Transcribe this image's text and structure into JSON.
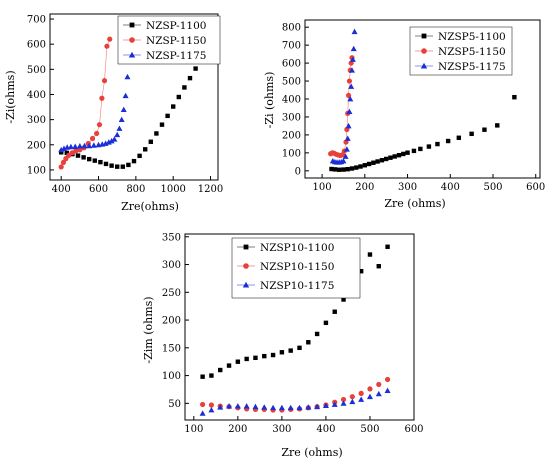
{
  "chart_data": [
    {
      "type": "scatter",
      "xlabel": "Zre(ohms)",
      "ylabel": "-Zi(ohms)",
      "xlim": [
        340,
        1240
      ],
      "ylim": [
        60,
        720
      ],
      "xticks": [
        400,
        600,
        800,
        1000,
        1200
      ],
      "yticks": [
        100,
        200,
        300,
        400,
        500,
        600,
        700
      ],
      "legend_position": "top-right",
      "series": [
        {
          "name": "NZSP-1100",
          "color": "#000000",
          "marker": "square",
          "connect": false,
          "x": [
            400,
            430,
            460,
            490,
            520,
            550,
            580,
            610,
            640,
            670,
            700,
            730,
            760,
            790,
            820,
            850,
            880,
            910,
            940,
            970,
            1000,
            1030,
            1060,
            1090,
            1120,
            1150,
            1180
          ],
          "y": [
            170,
            168,
            163,
            157,
            150,
            143,
            137,
            131,
            124,
            117,
            113,
            113,
            120,
            135,
            156,
            182,
            212,
            245,
            280,
            315,
            352,
            390,
            428,
            465,
            503,
            540,
            583
          ]
        },
        {
          "name": "NZSP-1150",
          "color": "#e8403a",
          "marker": "circle",
          "connect": true,
          "x": [
            400,
            412,
            425,
            440,
            458,
            478,
            500,
            522,
            545,
            568,
            590,
            605,
            618,
            632,
            645,
            660
          ],
          "y": [
            112,
            130,
            145,
            158,
            168,
            175,
            180,
            188,
            205,
            225,
            245,
            280,
            385,
            455,
            592,
            620
          ]
        },
        {
          "name": "NZSP-1175",
          "color": "#1a2fd6",
          "marker": "triangle",
          "connect": false,
          "x": [
            400,
            415,
            432,
            452,
            475,
            500,
            525,
            550,
            575,
            600,
            620,
            638,
            655,
            670,
            685,
            700,
            712,
            724,
            735,
            745,
            755
          ],
          "y": [
            180,
            185,
            190,
            192,
            193,
            195,
            196,
            196,
            198,
            200,
            202,
            205,
            210,
            215,
            222,
            240,
            265,
            300,
            340,
            395,
            470
          ]
        }
      ]
    },
    {
      "type": "scatter",
      "xlabel": "Zre (ohms)",
      "ylabel": "-Zi (ohms)",
      "xlim": [
        60,
        610
      ],
      "ylim": [
        -40,
        840
      ],
      "xticks": [
        100,
        200,
        300,
        400,
        500,
        600
      ],
      "yticks": [
        0,
        100,
        200,
        300,
        400,
        500,
        600,
        700,
        800
      ],
      "legend_position": "top-right",
      "series": [
        {
          "name": "NZSP5-1100",
          "color": "#000000",
          "marker": "square",
          "connect": false,
          "x": [
            122,
            130,
            140,
            150,
            160,
            170,
            180,
            190,
            200,
            210,
            220,
            230,
            240,
            250,
            260,
            270,
            280,
            290,
            300,
            315,
            330,
            350,
            370,
            395,
            420,
            450,
            480,
            510,
            550
          ],
          "y": [
            10,
            8,
            6,
            7,
            9,
            13,
            18,
            24,
            31,
            38,
            45,
            52,
            59,
            66,
            73,
            80,
            87,
            94,
            101,
            111,
            122,
            135,
            149,
            166,
            184,
            206,
            229,
            253,
            410
          ]
        },
        {
          "name": "NZSP5-1150",
          "color": "#e8403a",
          "marker": "circle",
          "connect": true,
          "x": [
            120,
            124,
            128,
            133,
            138,
            143,
            148,
            152,
            156,
            158,
            160,
            162,
            164,
            166,
            168,
            170
          ],
          "y": [
            95,
            100,
            98,
            92,
            88,
            85,
            90,
            110,
            160,
            230,
            320,
            420,
            500,
            560,
            600,
            630
          ]
        },
        {
          "name": "NZSP5-1175",
          "color": "#1a2fd6",
          "marker": "triangle",
          "connect": false,
          "x": [
            125,
            130,
            135,
            140,
            145,
            150,
            155,
            158,
            160,
            162,
            164,
            166,
            168,
            170,
            172,
            174,
            176
          ],
          "y": [
            55,
            50,
            48,
            48,
            50,
            55,
            80,
            120,
            180,
            250,
            330,
            400,
            470,
            560,
            620,
            680,
            775
          ]
        }
      ]
    },
    {
      "type": "scatter",
      "xlabel": "Zre (ohms)",
      "ylabel": "-Zim (ohms)",
      "xlim": [
        80,
        600
      ],
      "ylim": [
        20,
        355
      ],
      "xticks": [
        100,
        200,
        300,
        400,
        500,
        600
      ],
      "yticks": [
        50,
        100,
        150,
        200,
        250,
        300,
        350
      ],
      "legend_position": "top-left",
      "series": [
        {
          "name": "NZSP10-1100",
          "color": "#000000",
          "marker": "square",
          "connect": false,
          "x": [
            120,
            140,
            160,
            180,
            200,
            220,
            240,
            260,
            280,
            300,
            320,
            340,
            360,
            380,
            400,
            420,
            440,
            460,
            480,
            500,
            520,
            540
          ],
          "y": [
            98,
            100,
            110,
            118,
            125,
            130,
            132,
            135,
            137,
            142,
            145,
            150,
            160,
            175,
            195,
            215,
            237,
            262,
            288,
            318,
            297,
            332
          ]
        },
        {
          "name": "NZSP10-1150",
          "color": "#e8403a",
          "marker": "circle",
          "connect": false,
          "x": [
            120,
            140,
            160,
            180,
            200,
            220,
            240,
            260,
            280,
            300,
            320,
            340,
            360,
            380,
            400,
            420,
            440,
            460,
            480,
            500,
            520,
            540
          ],
          "y": [
            48,
            47,
            45,
            44,
            42,
            40,
            39,
            39,
            38,
            38,
            39,
            40,
            42,
            44,
            47,
            52,
            57,
            62,
            68,
            76,
            84,
            93
          ]
        },
        {
          "name": "NZSP10-1175",
          "color": "#1a2fd6",
          "marker": "triangle",
          "connect": false,
          "x": [
            120,
            140,
            160,
            180,
            200,
            220,
            240,
            260,
            280,
            300,
            320,
            340,
            360,
            380,
            400,
            420,
            440,
            460,
            480,
            500,
            520,
            540
          ],
          "y": [
            32,
            38,
            43,
            45,
            45,
            45,
            44,
            43,
            42,
            42,
            42,
            42,
            43,
            44,
            46,
            48,
            50,
            53,
            57,
            62,
            67,
            73
          ]
        }
      ]
    }
  ]
}
